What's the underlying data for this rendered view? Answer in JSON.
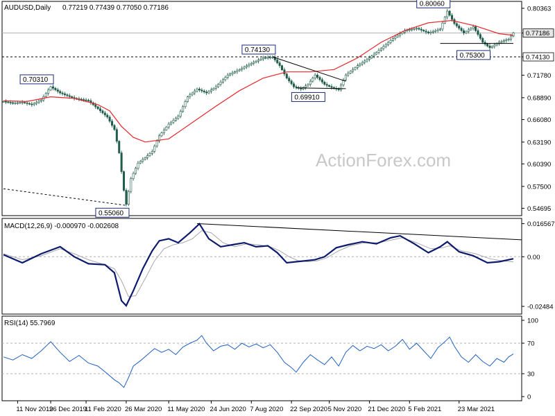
{
  "chart_data": [
    {
      "type": "candlestick",
      "header": {
        "symbol": "AUDUSD,Daily",
        "values": "0.77219 0.77439 0.77050 0.77186"
      },
      "watermark": "ActionForex.com",
      "ylim": [
        0.5375,
        0.8125
      ],
      "y_ticks": [
        "0.80363",
        "0.77186",
        "0.74130",
        "0.71780",
        "0.68890",
        "0.66080",
        "0.63190",
        "0.60390",
        "0.57500",
        "0.54695"
      ],
      "current_price": {
        "value": 0.77186,
        "label": "0.77186"
      },
      "level_line": {
        "value": 0.7413,
        "label": "0.74130"
      },
      "ma_line_color": "#e8262b",
      "candle_color": "#1f5c4a",
      "price_path": [
        [
          0,
          0.684
        ],
        [
          4,
          0.682
        ],
        [
          8,
          0.683
        ],
        [
          12,
          0.68
        ],
        [
          16,
          0.686
        ],
        [
          20,
          0.703
        ],
        [
          24,
          0.695
        ],
        [
          30,
          0.688
        ],
        [
          36,
          0.685
        ],
        [
          41,
          0.672
        ],
        [
          44,
          0.664
        ],
        [
          47,
          0.648
        ],
        [
          49,
          0.618
        ],
        [
          51,
          0.57
        ],
        [
          52,
          0.552
        ],
        [
          54,
          0.585
        ],
        [
          57,
          0.605
        ],
        [
          60,
          0.612
        ],
        [
          63,
          0.62
        ],
        [
          66,
          0.64
        ],
        [
          70,
          0.655
        ],
        [
          74,
          0.665
        ],
        [
          78,
          0.69
        ],
        [
          82,
          0.7
        ],
        [
          86,
          0.695
        ],
        [
          90,
          0.703
        ],
        [
          95,
          0.718
        ],
        [
          100,
          0.725
        ],
        [
          105,
          0.733
        ],
        [
          110,
          0.74
        ],
        [
          114,
          0.741
        ],
        [
          117,
          0.73
        ],
        [
          120,
          0.714
        ],
        [
          123,
          0.703
        ],
        [
          126,
          0.7
        ],
        [
          129,
          0.706
        ],
        [
          132,
          0.718
        ],
        [
          136,
          0.706
        ],
        [
          139,
          0.702
        ],
        [
          142,
          0.699
        ],
        [
          145,
          0.718
        ],
        [
          150,
          0.73
        ],
        [
          155,
          0.74
        ],
        [
          160,
          0.752
        ],
        [
          165,
          0.765
        ],
        [
          170,
          0.775
        ],
        [
          175,
          0.778
        ],
        [
          180,
          0.772
        ],
        [
          185,
          0.777
        ],
        [
          188,
          0.8
        ],
        [
          191,
          0.784
        ],
        [
          195,
          0.772
        ],
        [
          199,
          0.78
        ],
        [
          203,
          0.76
        ],
        [
          206,
          0.753
        ],
        [
          210,
          0.76
        ],
        [
          214,
          0.764
        ],
        [
          216,
          0.772
        ]
      ],
      "ma_path": [
        [
          0,
          0.685
        ],
        [
          10,
          0.684
        ],
        [
          20,
          0.69
        ],
        [
          30,
          0.688
        ],
        [
          40,
          0.68
        ],
        [
          45,
          0.672
        ],
        [
          50,
          0.652
        ],
        [
          55,
          0.638
        ],
        [
          60,
          0.632
        ],
        [
          70,
          0.636
        ],
        [
          80,
          0.657
        ],
        [
          90,
          0.678
        ],
        [
          100,
          0.698
        ],
        [
          110,
          0.714
        ],
        [
          120,
          0.722
        ],
        [
          130,
          0.722
        ],
        [
          140,
          0.725
        ],
        [
          150,
          0.74
        ],
        [
          160,
          0.76
        ],
        [
          170,
          0.775
        ],
        [
          180,
          0.785
        ],
        [
          190,
          0.788
        ],
        [
          200,
          0.781
        ],
        [
          210,
          0.771
        ],
        [
          216,
          0.769
        ]
      ],
      "annotations": [
        {
          "label": "0.70310",
          "bar": 20,
          "value": 0.7031,
          "side": "above"
        },
        {
          "label": "0.55060",
          "bar": 52,
          "value": 0.5506,
          "side": "below"
        },
        {
          "label": "0.74130",
          "bar": 114,
          "value": 0.7413,
          "side": "above"
        },
        {
          "label": "0.69910",
          "bar": 135,
          "value": 0.6991,
          "side": "below"
        },
        {
          "label": "0.80060",
          "bar": 188,
          "value": 0.8006,
          "side": "above"
        },
        {
          "label": "0.75300",
          "bar": 205,
          "value": 0.753,
          "side": "below"
        }
      ],
      "trendlines": [
        {
          "style": "dashed",
          "from": [
            0,
            0.572
          ],
          "to": [
            52,
            0.5506
          ]
        },
        {
          "style": "solid",
          "from": [
            114,
            0.7413
          ],
          "to": [
            145,
            0.71
          ]
        },
        {
          "style": "solid",
          "from": [
            124,
            0.7015
          ],
          "to": [
            145,
            0.7005
          ]
        },
        {
          "style": "solid",
          "from": [
            185,
            0.7585
          ],
          "to": [
            216,
            0.7585
          ]
        }
      ]
    },
    {
      "type": "line",
      "header": "MACD(12,26,9) -0.000970 -0.002608",
      "ylim": [
        -0.028,
        0.0185
      ],
      "y_ticks": [
        "0.016567",
        "0.00",
        "-0.02484"
      ],
      "zero_line": 0,
      "macd_color": "#0c1a6e",
      "signal_color": "#a8a8a8",
      "macd_path": [
        [
          0,
          0.001
        ],
        [
          8,
          -0.003
        ],
        [
          16,
          0.0015
        ],
        [
          24,
          0.005
        ],
        [
          30,
          0.0
        ],
        [
          36,
          -0.0035
        ],
        [
          43,
          -0.004
        ],
        [
          47,
          -0.008
        ],
        [
          50,
          -0.022
        ],
        [
          52,
          -0.0245
        ],
        [
          55,
          -0.017
        ],
        [
          59,
          -0.006
        ],
        [
          63,
          0.003
        ],
        [
          66,
          0.008
        ],
        [
          70,
          0.009
        ],
        [
          74,
          0.007
        ],
        [
          79,
          0.012
        ],
        [
          83,
          0.0165
        ],
        [
          87,
          0.009
        ],
        [
          92,
          0.005
        ],
        [
          97,
          0.006
        ],
        [
          102,
          0.007
        ],
        [
          107,
          0.005
        ],
        [
          112,
          0.0055
        ],
        [
          116,
          0.002
        ],
        [
          120,
          -0.003
        ],
        [
          124,
          -0.0025
        ],
        [
          128,
          -0.002
        ],
        [
          132,
          -0.0015
        ],
        [
          136,
          0.0
        ],
        [
          141,
          0.0045
        ],
        [
          146,
          0.006
        ],
        [
          152,
          0.0075
        ],
        [
          158,
          0.0065
        ],
        [
          164,
          0.0095
        ],
        [
          168,
          0.0105
        ],
        [
          174,
          0.0065
        ],
        [
          180,
          0.002
        ],
        [
          185,
          0.005
        ],
        [
          188,
          0.0075
        ],
        [
          193,
          0.0025
        ],
        [
          199,
          0.0005
        ],
        [
          205,
          -0.003
        ],
        [
          210,
          -0.0025
        ],
        [
          216,
          -0.001
        ]
      ],
      "signal_path": [
        [
          0,
          0.0015
        ],
        [
          8,
          -0.0015
        ],
        [
          16,
          0.0005
        ],
        [
          24,
          0.004
        ],
        [
          30,
          0.0015
        ],
        [
          36,
          -0.0015
        ],
        [
          43,
          -0.004
        ],
        [
          47,
          -0.006
        ],
        [
          50,
          -0.012
        ],
        [
          53,
          -0.02
        ],
        [
          56,
          -0.0195
        ],
        [
          60,
          -0.011
        ],
        [
          64,
          -0.002
        ],
        [
          68,
          0.004
        ],
        [
          72,
          0.006
        ],
        [
          76,
          0.007
        ],
        [
          80,
          0.009
        ],
        [
          84,
          0.013
        ],
        [
          88,
          0.012
        ],
        [
          93,
          0.007
        ],
        [
          98,
          0.005
        ],
        [
          103,
          0.0065
        ],
        [
          108,
          0.006
        ],
        [
          113,
          0.005
        ],
        [
          117,
          0.003
        ],
        [
          121,
          0.0
        ],
        [
          125,
          -0.002
        ],
        [
          129,
          -0.0025
        ],
        [
          133,
          -0.002
        ],
        [
          137,
          -0.0005
        ],
        [
          142,
          0.003
        ],
        [
          147,
          0.0055
        ],
        [
          153,
          0.007
        ],
        [
          159,
          0.007
        ],
        [
          165,
          0.0085
        ],
        [
          169,
          0.0095
        ],
        [
          175,
          0.007
        ],
        [
          181,
          0.004
        ],
        [
          186,
          0.0045
        ],
        [
          189,
          0.0055
        ],
        [
          194,
          0.003
        ],
        [
          200,
          0.0015
        ],
        [
          206,
          -0.001
        ],
        [
          211,
          -0.002
        ],
        [
          216,
          -0.0026
        ]
      ],
      "trendline": {
        "from": [
          82,
          0.0166
        ],
        "to": [
          216,
          0.0085
        ]
      }
    },
    {
      "type": "line",
      "header": "RSI(14) 55.7969",
      "ylim": [
        0,
        100
      ],
      "y_ticks": [
        "100",
        "70",
        "30",
        "0"
      ],
      "levels": [
        70,
        30
      ],
      "rsi_color": "#1f5fbf",
      "rsi_path": [
        [
          0,
          52
        ],
        [
          4,
          48
        ],
        [
          8,
          55
        ],
        [
          12,
          50
        ],
        [
          16,
          60
        ],
        [
          20,
          72
        ],
        [
          24,
          58
        ],
        [
          28,
          46
        ],
        [
          32,
          54
        ],
        [
          36,
          44
        ],
        [
          40,
          40
        ],
        [
          44,
          30
        ],
        [
          47,
          22
        ],
        [
          49,
          18
        ],
        [
          51,
          12
        ],
        [
          53,
          25
        ],
        [
          55,
          40
        ],
        [
          58,
          47
        ],
        [
          61,
          55
        ],
        [
          64,
          63
        ],
        [
          67,
          58
        ],
        [
          70,
          62
        ],
        [
          73,
          55
        ],
        [
          76,
          65
        ],
        [
          79,
          70
        ],
        [
          82,
          74
        ],
        [
          84,
          80
        ],
        [
          86,
          70
        ],
        [
          89,
          60
        ],
        [
          92,
          66
        ],
        [
          95,
          68
        ],
        [
          98,
          62
        ],
        [
          101,
          70
        ],
        [
          104,
          65
        ],
        [
          107,
          69
        ],
        [
          110,
          64
        ],
        [
          113,
          68
        ],
        [
          116,
          58
        ],
        [
          119,
          45
        ],
        [
          122,
          38
        ],
        [
          124,
          32
        ],
        [
          127,
          45
        ],
        [
          130,
          55
        ],
        [
          133,
          48
        ],
        [
          136,
          42
        ],
        [
          139,
          52
        ],
        [
          142,
          40
        ],
        [
          145,
          58
        ],
        [
          148,
          67
        ],
        [
          151,
          60
        ],
        [
          154,
          66
        ],
        [
          157,
          63
        ],
        [
          160,
          68
        ],
        [
          163,
          60
        ],
        [
          166,
          66
        ],
        [
          169,
          75
        ],
        [
          172,
          62
        ],
        [
          175,
          70
        ],
        [
          178,
          60
        ],
        [
          181,
          50
        ],
        [
          184,
          64
        ],
        [
          187,
          72
        ],
        [
          189,
          78
        ],
        [
          191,
          66
        ],
        [
          194,
          52
        ],
        [
          197,
          45
        ],
        [
          200,
          55
        ],
        [
          203,
          46
        ],
        [
          206,
          40
        ],
        [
          209,
          50
        ],
        [
          212,
          45
        ],
        [
          214,
          52
        ],
        [
          216,
          56
        ]
      ]
    }
  ],
  "time_axis": {
    "labels": [
      {
        "text": "11 Nov 2019",
        "bar": 6
      },
      {
        "text": "26 Dec 2019",
        "bar": 20
      },
      {
        "text": "11 Feb 2020",
        "bar": 35
      },
      {
        "text": "26 Mar 2020",
        "bar": 52
      },
      {
        "text": "11 May 2020",
        "bar": 70
      },
      {
        "text": "24 Jun 2020",
        "bar": 88
      },
      {
        "text": "7 Aug 2020",
        "bar": 105
      },
      {
        "text": "22 Sep 2020",
        "bar": 122
      },
      {
        "text": "5 Nov 2020",
        "bar": 138
      },
      {
        "text": "21 Dec 2020",
        "bar": 155
      },
      {
        "text": "5 Feb 2021",
        "bar": 172
      },
      {
        "text": "23 Mar 2021",
        "bar": 193
      }
    ]
  }
}
